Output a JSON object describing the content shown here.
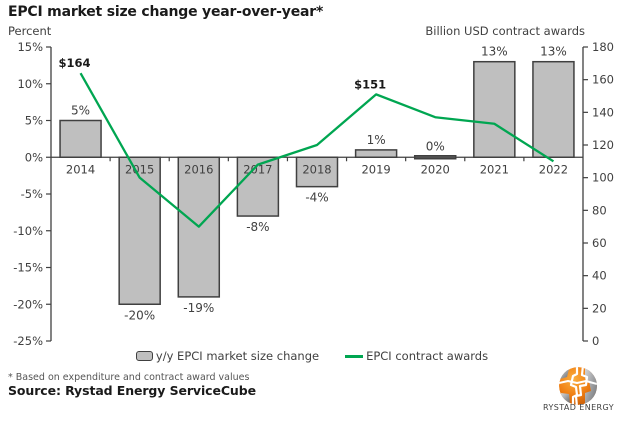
{
  "title": "EPCI market size change year-over-year*",
  "axis_titles": {
    "left": "Percent",
    "right": "Billion USD contract awards"
  },
  "legend": {
    "bar_label": "y/y EPCI market size change",
    "line_label": "EPCI contract awards"
  },
  "footnote": "* Based on expenditure and contract award values",
  "source": "Source: Rystad Energy ServiceCube",
  "logo_text": "RYSTAD ENERGY",
  "colors": {
    "bar_fill": "#bfbfbf",
    "bar_stroke": "#404040",
    "line": "#00a651",
    "axis": "#404040",
    "text": "#404040",
    "title_text": "#1a1a1a",
    "logo_orange": "#f07f13"
  },
  "chart_data": {
    "type": "bar",
    "subtype": "bar+line combo",
    "categories": [
      "2014",
      "2015",
      "2016",
      "2017",
      "2018",
      "2019",
      "2020",
      "2021",
      "2022"
    ],
    "series": [
      {
        "name": "y/y EPCI market size change",
        "type": "bar",
        "unit": "percent",
        "axis": "left",
        "values": [
          5,
          -20,
          -19,
          -8,
          -4,
          1,
          0,
          13,
          13
        ],
        "labels": [
          "5%",
          "-20%",
          "-19%",
          "-8%",
          "-4%",
          "1%",
          "0%",
          "13%",
          "13%"
        ]
      },
      {
        "name": "EPCI contract awards",
        "type": "line",
        "unit": "Billion USD",
        "axis": "right",
        "values": [
          164,
          100,
          70,
          108,
          120,
          151,
          137,
          133,
          110
        ],
        "annotations": [
          {
            "index": 0,
            "text": "$164"
          },
          {
            "index": 5,
            "text": "$151"
          }
        ]
      }
    ],
    "left_axis": {
      "title": "Percent",
      "min": -25,
      "max": 15,
      "step": 5,
      "suffix": "%"
    },
    "right_axis": {
      "title": "Billion USD contract awards",
      "min": 0,
      "max": 180,
      "step": 20
    },
    "grid": "off",
    "legend_position": "bottom"
  }
}
